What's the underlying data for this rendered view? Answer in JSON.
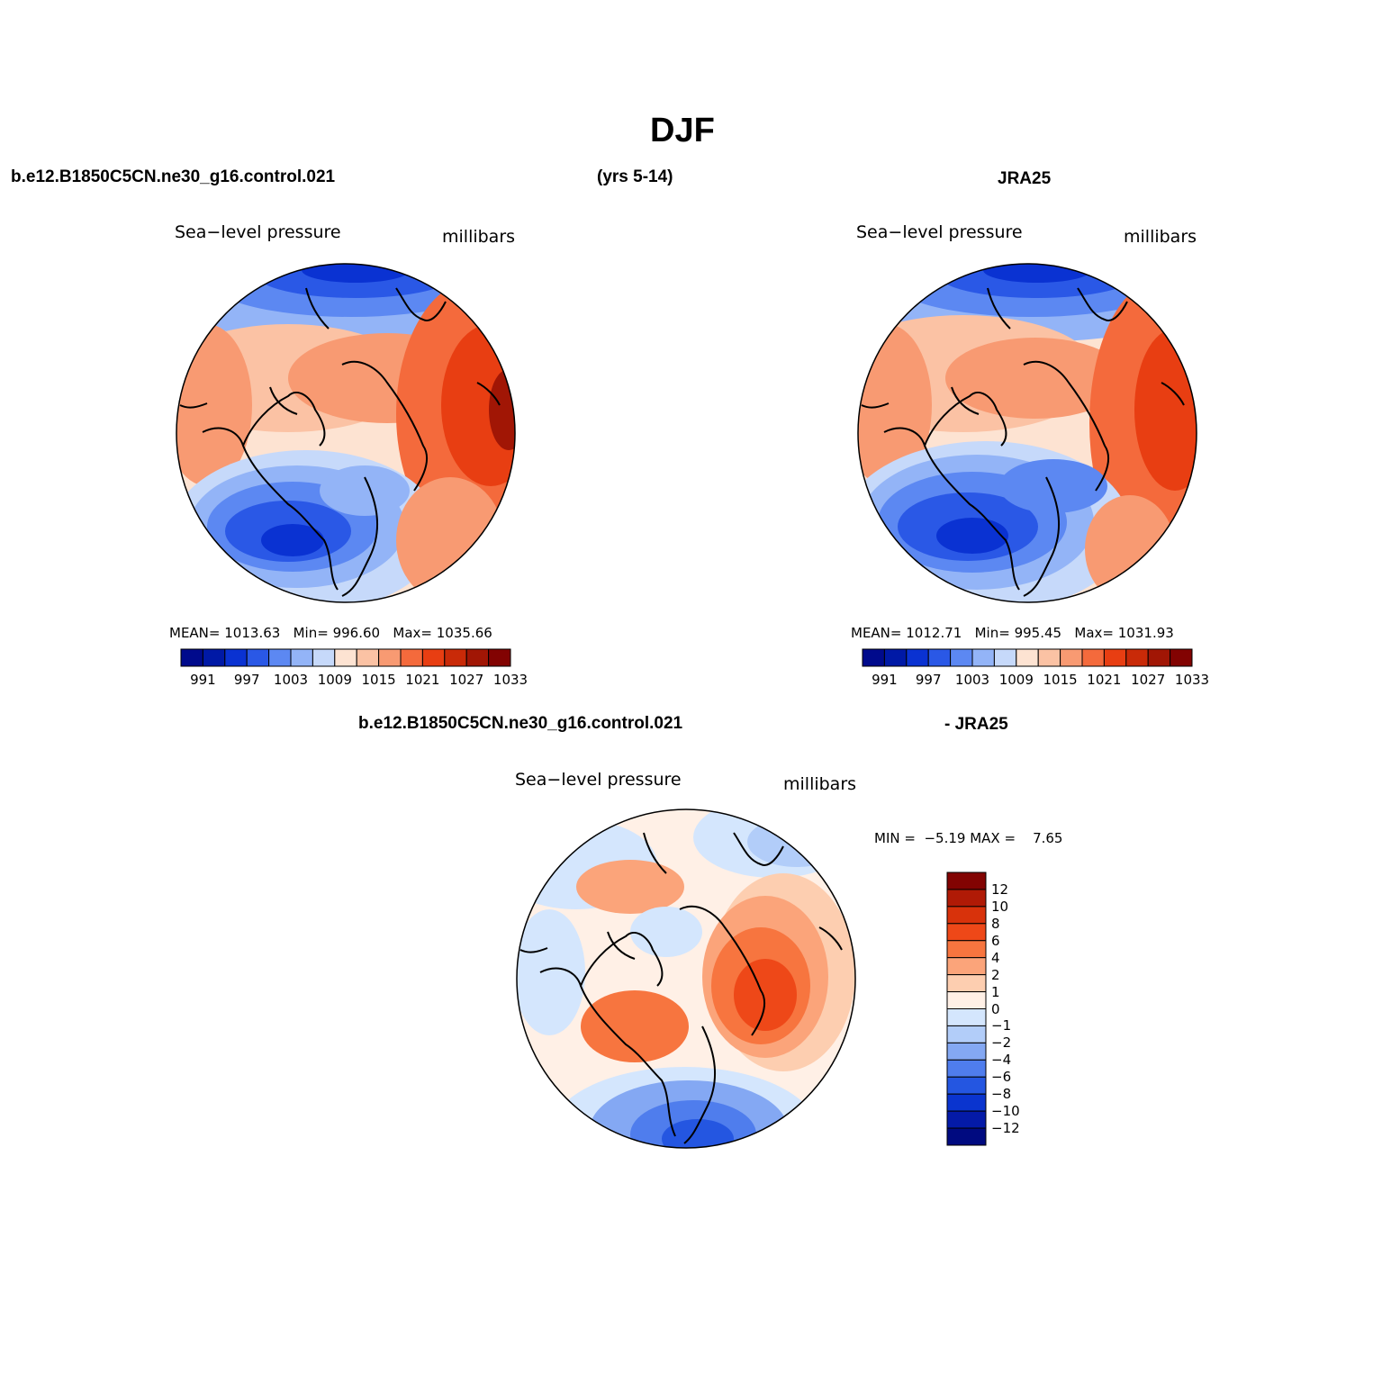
{
  "figure": {
    "title": "DJF",
    "case_name": "b.e12.B1850C5CN.ne30_g16.control.021",
    "years": "(yrs 5-14)",
    "reference": "JRA25",
    "diff_case": "b.e12.B1850C5CN.ne30_g16.control.021",
    "diff_ref": "- JRA25"
  },
  "panels": [
    {
      "id": "model",
      "label_left": "Sea−level pressure",
      "label_right": "millibars",
      "mean_label": "MEAN=",
      "mean": "1013.63",
      "min_label": "Min=",
      "min": "996.60",
      "max_label": "Max=",
      "max": "1035.66"
    },
    {
      "id": "obs",
      "label_left": "Sea−level pressure",
      "label_right": "millibars",
      "mean_label": "MEAN=",
      "mean": "1012.71",
      "min_label": "Min=",
      "min": "995.45",
      "max_label": "Max=",
      "max": "1031.93"
    },
    {
      "id": "diff",
      "label_left": "Sea−level pressure",
      "label_right": "millibars",
      "minmax_text": "MIN =  −5.19 MAX =    7.65"
    }
  ],
  "abs_colorbar": {
    "ticks": [
      "991",
      "997",
      "1003",
      "1009",
      "1015",
      "1021",
      "1027",
      "1033"
    ],
    "colors": [
      "#000a8c",
      "#0019a6",
      "#0a32d2",
      "#2a58e6",
      "#5c88f2",
      "#93b4f7",
      "#c6d9fa",
      "#fde3d2",
      "#fbc2a4",
      "#f89a72",
      "#f46a3c",
      "#e83e12",
      "#c92a08",
      "#a11605",
      "#820302"
    ]
  },
  "diff_colorbar": {
    "ticks": [
      "12",
      "10",
      "8",
      "6",
      "4",
      "2",
      "1",
      "0",
      "−1",
      "−2",
      "−4",
      "−6",
      "−8",
      "−10",
      "−12"
    ],
    "colors": [
      "#820302",
      "#b01a06",
      "#d8320b",
      "#ee4818",
      "#f7753f",
      "#fba47a",
      "#fdceb0",
      "#fff0e6",
      "#d4e6fd",
      "#b2cdf9",
      "#84a8f3",
      "#4f7ded",
      "#2456e1",
      "#0a34cf",
      "#041aa8",
      "#000a80"
    ]
  },
  "map_colors": {
    "deep_low": "#0a32d2",
    "low": "#2a58e6",
    "mid_low": "#5c88f2",
    "light_low": "#93b4f7",
    "pale_low": "#c6d9fa",
    "neutral": "#fde3d2",
    "pale_high": "#fbc2a4",
    "mid_high": "#f89a72",
    "high": "#f46a3c",
    "strong_high": "#e83e12",
    "peak": "#a11605"
  }
}
